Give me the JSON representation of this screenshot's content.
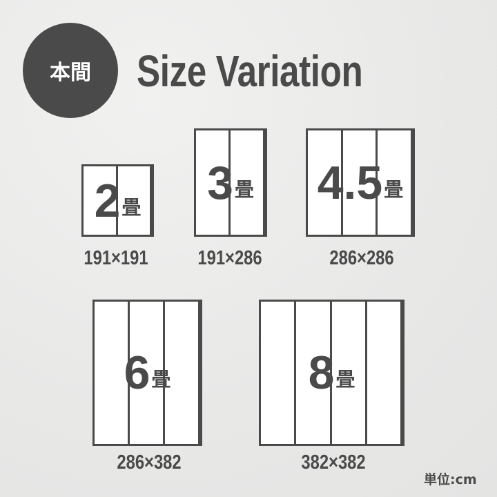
{
  "badge": {
    "label": "本間"
  },
  "title": "Size Variation",
  "mats": [
    {
      "size": "2",
      "unit": "畳",
      "panels": 2,
      "dimensions": "191×191"
    },
    {
      "size": "3",
      "unit": "畳",
      "panels": 2,
      "dimensions": "191×286"
    },
    {
      "size": "4.5",
      "unit": "畳",
      "panels": 3,
      "dimensions": "286×286"
    },
    {
      "size": "6",
      "unit": "畳",
      "panels": 3,
      "dimensions": "286×382"
    },
    {
      "size": "8",
      "unit": "畳",
      "panels": 4,
      "dimensions": "382×382"
    }
  ],
  "unit_note": "単位:cm",
  "colors": {
    "ink": "#4a4a4a",
    "background": "#ebebea",
    "mat": "#ffffff"
  }
}
